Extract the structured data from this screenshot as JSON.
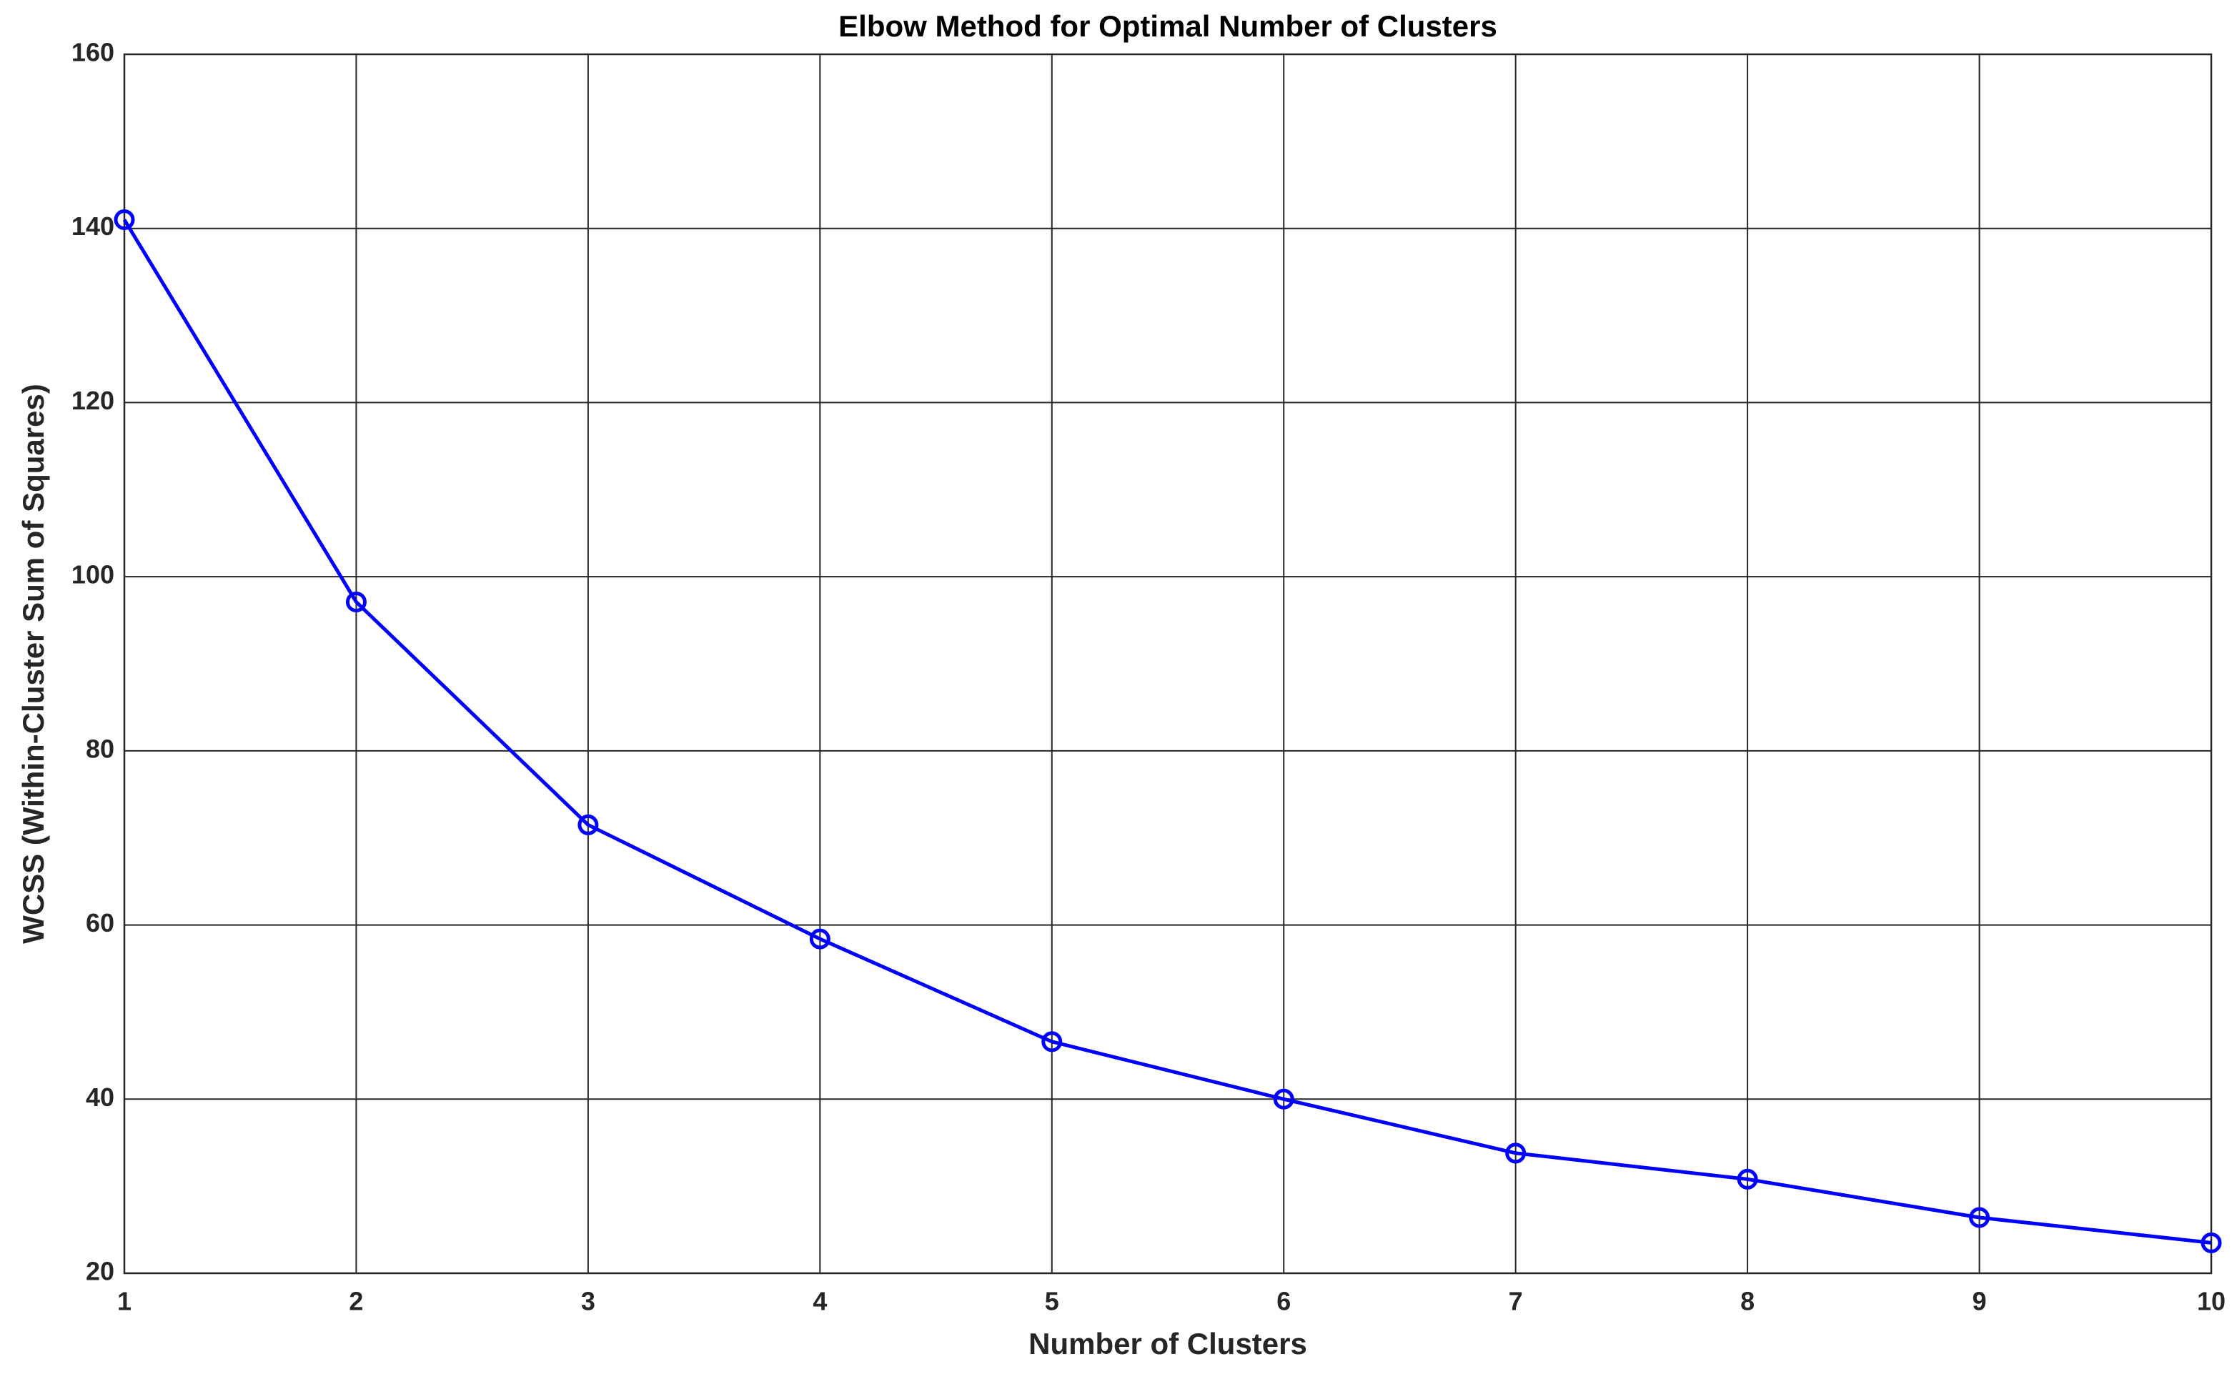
{
  "chart_data": {
    "type": "line",
    "title": "Elbow Method for Optimal Number of Clusters",
    "x_label": "Number of Clusters",
    "y_label": "WCSS (Within-Cluster Sum of Squares)",
    "x": [
      1,
      2,
      3,
      4,
      5,
      6,
      7,
      8,
      9,
      10
    ],
    "series": [
      {
        "name": "WCSS",
        "color": "#0000ff",
        "values": [
          141,
          97.1,
          71.5,
          58.4,
          46.6,
          40.0,
          33.8,
          30.8,
          26.4,
          23.5
        ]
      }
    ],
    "xlim": [
      1,
      10
    ],
    "xticks": [
      1,
      2,
      3,
      4,
      5,
      6,
      7,
      8,
      9,
      10
    ],
    "ylim": [
      20,
      160
    ],
    "yticks": [
      20,
      40,
      60,
      80,
      100,
      120,
      140,
      160
    ],
    "grid": true,
    "marker": "circle"
  }
}
